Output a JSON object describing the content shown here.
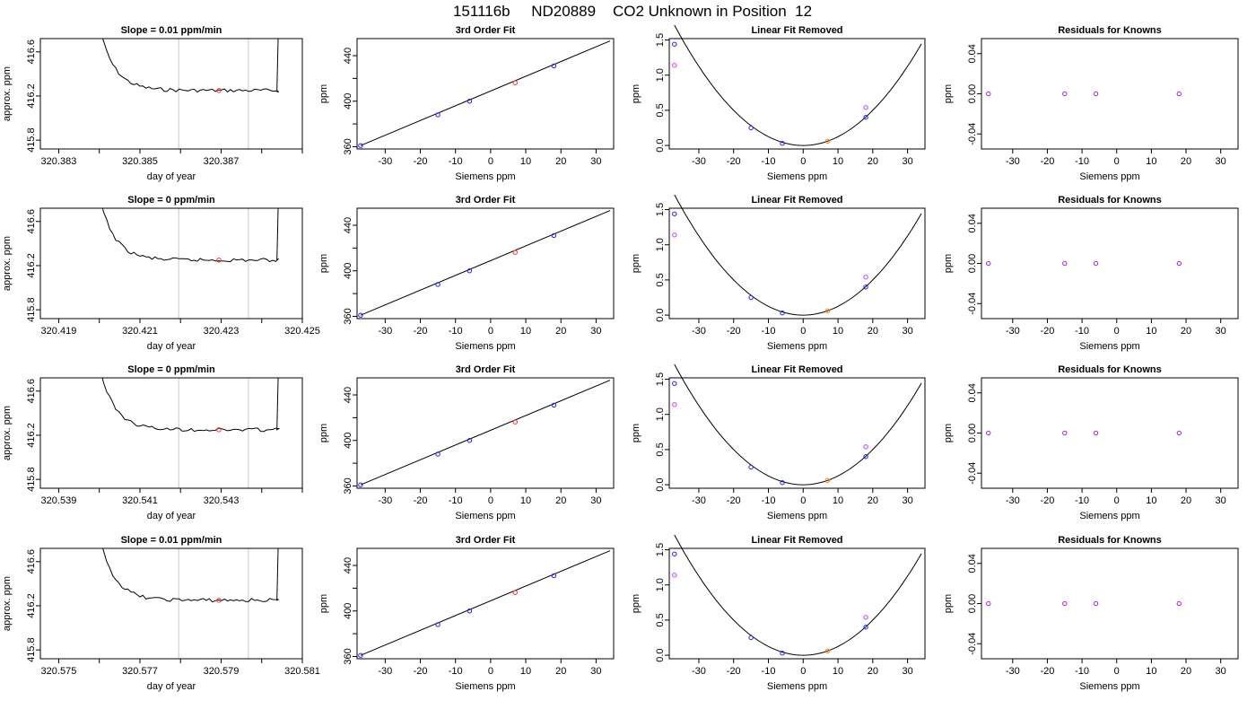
{
  "title": "151116b     ND20889    CO2 Unknown in Position  12",
  "colors": {
    "trace": "#000000",
    "marker_lines": "#c8c8c8",
    "unknown": "#ff3030",
    "known": "#2020ff",
    "fit_point": "#ff7f00",
    "residual": "#a020f0",
    "offset": "#c040ff"
  },
  "rows": [
    {
      "slope_title": "Slope =  0.01  ppm/min",
      "time_ticks": [
        "320.383",
        "320.385",
        "320.387"
      ],
      "time_minor_count": 7
    },
    {
      "slope_title": "Slope =  0  ppm/min",
      "time_ticks": [
        "320.419",
        "320.421",
        "320.423",
        "320.425"
      ],
      "time_minor_count": 7
    },
    {
      "slope_title": "Slope =  0  ppm/min",
      "time_ticks": [
        "320.539",
        "320.541",
        "320.543"
      ],
      "time_minor_count": 7
    },
    {
      "slope_title": "Slope =  0.01  ppm/min",
      "time_ticks": [
        "320.575",
        "320.577",
        "320.579",
        "320.581"
      ],
      "time_minor_count": 7
    }
  ],
  "chart_data": [
    {
      "type": "line",
      "panel": "time-series",
      "xlabel": "day of year",
      "ylabel": "approx. ppm",
      "y_ticks": [
        415.8,
        416.2,
        416.6
      ],
      "y_tick_labels": [
        "415.8",
        "416.2",
        "416.6"
      ],
      "ylim": [
        415.72,
        416.72
      ],
      "plateau_ppm": 416.25
    },
    {
      "type": "scatter",
      "title": "3rd Order Fit",
      "xlabel": "Siemens ppm",
      "ylabel": "ppm",
      "xlim": [
        -38,
        35
      ],
      "ylim": [
        358,
        455
      ],
      "x_ticks": [
        -30,
        -20,
        -10,
        0,
        10,
        20,
        30
      ],
      "y_ticks": [
        360,
        400,
        440
      ],
      "knowns": [
        {
          "x": -37,
          "y": 361
        },
        {
          "x": -15,
          "y": 388
        },
        {
          "x": -6,
          "y": 400
        },
        {
          "x": 18,
          "y": 431
        }
      ],
      "unknown": {
        "x": 7,
        "y": 416.2
      },
      "fit_line": [
        {
          "x": -37,
          "y": 361
        },
        {
          "x": 34,
          "y": 453
        }
      ]
    },
    {
      "type": "scatter",
      "title": "Linear Fit Removed",
      "xlabel": "Siemens ppm",
      "ylabel": "ppm",
      "xlim": [
        -38.5,
        35
      ],
      "ylim": [
        -0.05,
        1.52
      ],
      "x_ticks": [
        -30,
        -20,
        -10,
        0,
        10,
        20,
        30
      ],
      "y_ticks": [
        0.0,
        0.5,
        1.0,
        1.5
      ],
      "y_tick_labels": [
        "0.0",
        "0.5",
        "1.0",
        "1.5"
      ],
      "knowns": [
        {
          "x": -37,
          "y": 1.44
        },
        {
          "x": -15,
          "y": 0.25
        },
        {
          "x": -6,
          "y": 0.03
        },
        {
          "x": 18,
          "y": 0.4
        }
      ],
      "raw": [
        {
          "x": -37,
          "y": 1.14
        },
        {
          "x": 18,
          "y": 0.54
        }
      ],
      "unknown": {
        "x": 7,
        "y": 0.06
      },
      "curve": {
        "center": 0,
        "coef": 0.00125
      }
    },
    {
      "type": "scatter",
      "title": "Residuals for Knowns",
      "xlabel": "Siemens ppm",
      "ylabel": "ppm",
      "xlim": [
        -39,
        35
      ],
      "ylim": [
        -0.055,
        0.055
      ],
      "x_ticks": [
        -30,
        -20,
        -10,
        0,
        10,
        20,
        30
      ],
      "y_ticks": [
        -0.04,
        0.0,
        0.04
      ],
      "y_tick_labels": [
        "-0.04",
        "0.00",
        "0.04"
      ],
      "points": [
        {
          "x": -37,
          "y": 0
        },
        {
          "x": -15,
          "y": 0
        },
        {
          "x": -6,
          "y": 0
        },
        {
          "x": 18,
          "y": 0
        }
      ]
    }
  ]
}
